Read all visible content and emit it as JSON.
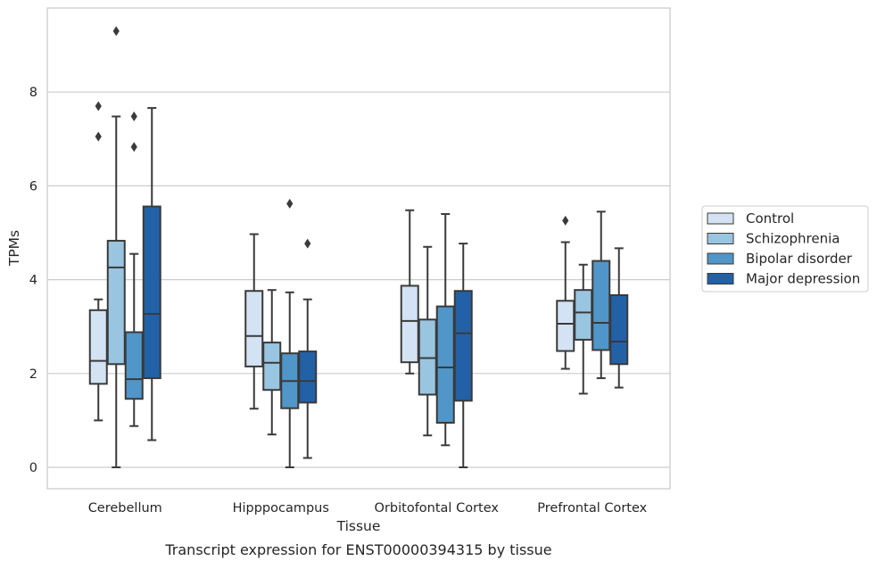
{
  "chart_data": {
    "type": "box",
    "title": "",
    "caption": "Transcript expression for ENST00000394315 by tissue",
    "xlabel": "Tissue",
    "ylabel": "TPMs",
    "ylim": [
      -0.45,
      9.8
    ],
    "yticks": [
      0,
      2,
      4,
      6,
      8
    ],
    "grid": "horizontal",
    "legend_position": "right",
    "categories": [
      "Cerebellum",
      "Hipppocampus",
      "Orbitofontal Cortex",
      "Prefrontal Cortex"
    ],
    "series": [
      {
        "name": "Control",
        "color": "#d4e3f3",
        "boxes": [
          {
            "whisker_low": 1.0,
            "q1": 1.78,
            "median": 2.27,
            "q3": 3.35,
            "whisker_high": 3.58,
            "outliers": [
              7.05,
              7.7
            ]
          },
          {
            "whisker_low": 1.25,
            "q1": 2.15,
            "median": 2.8,
            "q3": 3.76,
            "whisker_high": 4.97,
            "outliers": []
          },
          {
            "whisker_low": 2.0,
            "q1": 2.24,
            "median": 3.12,
            "q3": 3.87,
            "whisker_high": 5.48,
            "outliers": []
          },
          {
            "whisker_low": 2.1,
            "q1": 2.48,
            "median": 3.06,
            "q3": 3.55,
            "whisker_high": 4.8,
            "outliers": [
              5.26
            ]
          }
        ]
      },
      {
        "name": "Schizophrenia",
        "color": "#9ac5e0",
        "boxes": [
          {
            "whisker_low": 0.0,
            "q1": 2.2,
            "median": 4.26,
            "q3": 4.83,
            "whisker_high": 7.48,
            "outliers": [
              9.3
            ]
          },
          {
            "whisker_low": 0.7,
            "q1": 1.65,
            "median": 2.23,
            "q3": 2.66,
            "whisker_high": 3.78,
            "outliers": []
          },
          {
            "whisker_low": 0.68,
            "q1": 1.55,
            "median": 2.33,
            "q3": 3.15,
            "whisker_high": 4.7,
            "outliers": []
          },
          {
            "whisker_low": 1.57,
            "q1": 2.72,
            "median": 3.3,
            "q3": 3.78,
            "whisker_high": 4.32,
            "outliers": []
          }
        ]
      },
      {
        "name": "Bipolar disorder",
        "color": "#5096c8",
        "boxes": [
          {
            "whisker_low": 0.88,
            "q1": 1.46,
            "median": 1.88,
            "q3": 2.88,
            "whisker_high": 4.55,
            "outliers": [
              6.83,
              7.48
            ]
          },
          {
            "whisker_low": 0.0,
            "q1": 1.26,
            "median": 1.84,
            "q3": 2.43,
            "whisker_high": 3.73,
            "outliers": [
              5.62
            ]
          },
          {
            "whisker_low": 0.47,
            "q1": 0.95,
            "median": 2.13,
            "q3": 3.43,
            "whisker_high": 5.4,
            "outliers": []
          },
          {
            "whisker_low": 1.9,
            "q1": 2.5,
            "median": 3.08,
            "q3": 4.4,
            "whisker_high": 5.45,
            "outliers": []
          }
        ]
      },
      {
        "name": "Major depression",
        "color": "#2261a6",
        "boxes": [
          {
            "whisker_low": 0.58,
            "q1": 1.9,
            "median": 3.27,
            "q3": 5.56,
            "whisker_high": 7.66,
            "outliers": []
          },
          {
            "whisker_low": 0.2,
            "q1": 1.38,
            "median": 1.84,
            "q3": 2.47,
            "whisker_high": 3.58,
            "outliers": [
              4.77
            ]
          },
          {
            "whisker_low": 0.0,
            "q1": 1.42,
            "median": 2.86,
            "q3": 3.76,
            "whisker_high": 4.77,
            "outliers": []
          },
          {
            "whisker_low": 1.7,
            "q1": 2.2,
            "median": 2.68,
            "q3": 3.67,
            "whisker_high": 4.67,
            "outliers": []
          }
        ]
      }
    ]
  }
}
